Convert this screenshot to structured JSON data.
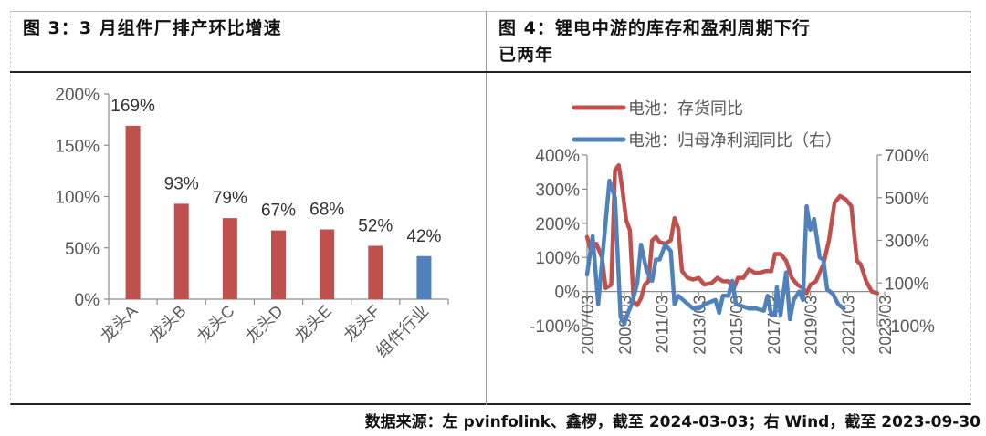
{
  "left_panel": {
    "title": "图 3：3 月组件厂排产环比增速"
  },
  "right_panel": {
    "title_line1": "图 4：锂电中游的库存和盈利周期下行",
    "title_line2": "已两年"
  },
  "source": "数据来源：左 pvinfolink、鑫椤，截至 2024-03-03；右 Wind，截至 2023-09-30",
  "colors": {
    "red": "#c0504d",
    "blue": "#4f81bd",
    "axis": "#8c8c8c",
    "text": "#595959"
  },
  "chart_data": [
    {
      "type": "bar",
      "title": "图 3：3 月组件厂排产环比增速",
      "categories": [
        "龙头A",
        "龙头B",
        "龙头C",
        "龙头D",
        "龙头E",
        "龙头F",
        "组件行业"
      ],
      "values": [
        169,
        93,
        79,
        67,
        68,
        52,
        42
      ],
      "value_labels": [
        "169%",
        "93%",
        "79%",
        "67%",
        "68%",
        "52%",
        "42%"
      ],
      "bar_colors": [
        "#c0504d",
        "#c0504d",
        "#c0504d",
        "#c0504d",
        "#c0504d",
        "#c0504d",
        "#4f81bd"
      ],
      "xlabel": "",
      "ylabel": "",
      "ylim": [
        0,
        200
      ],
      "yticks": [
        "0%",
        "50%",
        "100%",
        "150%",
        "200%"
      ],
      "grid": false,
      "legend": null
    },
    {
      "type": "line",
      "title": "图 4：锂电中游的库存和盈利周期下行已两年",
      "x_ticks": [
        "2007/03",
        "2009/03",
        "2011/03",
        "2013/03",
        "2015/03",
        "2017/03",
        "2019/03",
        "2021/03",
        "2023/03"
      ],
      "x_range": [
        "2007/03",
        "2023/09"
      ],
      "left_axis": {
        "ylim": [
          -100,
          400
        ],
        "ticks": [
          "-100%",
          "0%",
          "100%",
          "200%",
          "300%",
          "400%"
        ]
      },
      "right_axis": {
        "ylim": [
          -100,
          700
        ],
        "ticks": [
          "-100%",
          "100%",
          "300%",
          "500%",
          "700%"
        ]
      },
      "legend_position": "top",
      "series": [
        {
          "name": "电池：存货同比",
          "axis": "left",
          "color": "#c0504d",
          "points": [
            [
              2007.2,
              160
            ],
            [
              2007.4,
              120
            ],
            [
              2007.7,
              140
            ],
            [
              2008.0,
              100
            ],
            [
              2008.2,
              10
            ],
            [
              2008.5,
              20
            ],
            [
              2008.7,
              355
            ],
            [
              2008.9,
              370
            ],
            [
              2009.1,
              300
            ],
            [
              2009.3,
              210
            ],
            [
              2009.5,
              180
            ],
            [
              2009.7,
              -30
            ],
            [
              2009.9,
              -40
            ],
            [
              2010.1,
              -20
            ],
            [
              2010.3,
              20
            ],
            [
              2010.5,
              30
            ],
            [
              2010.7,
              150
            ],
            [
              2010.9,
              160
            ],
            [
              2011.1,
              145
            ],
            [
              2011.4,
              140
            ],
            [
              2011.7,
              150
            ],
            [
              2011.9,
              215
            ],
            [
              2012.1,
              185
            ],
            [
              2012.3,
              60
            ],
            [
              2012.6,
              40
            ],
            [
              2012.9,
              35
            ],
            [
              2013.2,
              40
            ],
            [
              2013.5,
              20
            ],
            [
              2013.9,
              25
            ],
            [
              2014.2,
              40
            ],
            [
              2014.5,
              30
            ],
            [
              2014.8,
              30
            ],
            [
              2015.1,
              10
            ],
            [
              2015.3,
              40
            ],
            [
              2015.6,
              40
            ],
            [
              2015.9,
              65
            ],
            [
              2016.2,
              55
            ],
            [
              2016.5,
              55
            ],
            [
              2016.8,
              60
            ],
            [
              2017.1,
              60
            ],
            [
              2017.3,
              110
            ],
            [
              2017.6,
              110
            ],
            [
              2017.9,
              90
            ],
            [
              2018.2,
              40
            ],
            [
              2018.5,
              20
            ],
            [
              2018.8,
              10
            ],
            [
              2019.0,
              -5
            ],
            [
              2019.2,
              20
            ],
            [
              2019.5,
              30
            ],
            [
              2019.9,
              80
            ],
            [
              2020.2,
              150
            ],
            [
              2020.5,
              260
            ],
            [
              2020.8,
              280
            ],
            [
              2021.1,
              270
            ],
            [
              2021.4,
              250
            ],
            [
              2021.7,
              90
            ],
            [
              2021.9,
              80
            ],
            [
              2022.2,
              30
            ],
            [
              2022.5,
              0
            ],
            [
              2022.8,
              -5
            ]
          ]
        },
        {
          "name": "电池：归母净利润同比（右）",
          "axis": "right",
          "color": "#4f81bd",
          "points": [
            [
              2007.2,
              140
            ],
            [
              2007.5,
              320
            ],
            [
              2007.8,
              0
            ],
            [
              2008.1,
              290
            ],
            [
              2008.4,
              580
            ],
            [
              2008.7,
              500
            ],
            [
              2009.0,
              -60
            ],
            [
              2009.2,
              -90
            ],
            [
              2009.4,
              -40
            ],
            [
              2009.6,
              0
            ],
            [
              2009.9,
              100
            ],
            [
              2010.1,
              280
            ],
            [
              2010.4,
              160
            ],
            [
              2010.7,
              110
            ],
            [
              2010.9,
              210
            ],
            [
              2011.1,
              210
            ],
            [
              2011.4,
              280
            ],
            [
              2011.7,
              250
            ],
            [
              2011.9,
              0
            ],
            [
              2012.1,
              40
            ],
            [
              2012.5,
              10
            ],
            [
              2012.9,
              -20
            ],
            [
              2013.2,
              -20
            ],
            [
              2013.5,
              0
            ],
            [
              2013.8,
              10
            ],
            [
              2014.1,
              20
            ],
            [
              2014.3,
              -40
            ],
            [
              2014.5,
              40
            ],
            [
              2014.8,
              40
            ],
            [
              2015.0,
              110
            ],
            [
              2015.2,
              0
            ],
            [
              2015.6,
              -10
            ],
            [
              2015.9,
              -20
            ],
            [
              2016.3,
              -20
            ],
            [
              2016.7,
              -30
            ],
            [
              2016.9,
              40
            ],
            [
              2017.1,
              -50
            ],
            [
              2017.3,
              -50
            ],
            [
              2017.4,
              80
            ],
            [
              2017.6,
              -50
            ],
            [
              2017.9,
              150
            ],
            [
              2018.1,
              -70
            ],
            [
              2018.3,
              20
            ],
            [
              2018.6,
              60
            ],
            [
              2018.8,
              20
            ],
            [
              2019.0,
              460
            ],
            [
              2019.2,
              350
            ],
            [
              2019.4,
              400
            ],
            [
              2019.7,
              220
            ],
            [
              2019.9,
              210
            ],
            [
              2020.1,
              70
            ],
            [
              2020.4,
              50
            ],
            [
              2020.7,
              0
            ],
            [
              2021.0,
              -20
            ]
          ]
        }
      ]
    }
  ]
}
